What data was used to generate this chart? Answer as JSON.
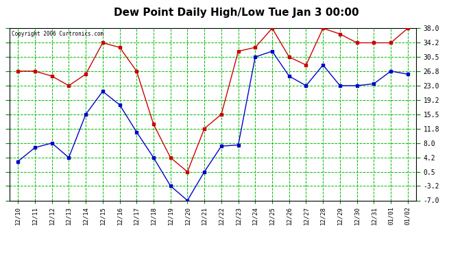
{
  "title": "Dew Point Daily High/Low Tue Jan 3 00:00",
  "copyright": "Copyright 2006 Curtronics.com",
  "labels": [
    "12/10",
    "12/11",
    "12/12",
    "12/13",
    "12/14",
    "12/15",
    "12/16",
    "12/17",
    "12/18",
    "12/19",
    "12/20",
    "12/21",
    "12/22",
    "12/23",
    "12/24",
    "12/25",
    "12/26",
    "12/27",
    "12/28",
    "12/29",
    "12/30",
    "12/31",
    "01/01",
    "01/02"
  ],
  "high": [
    26.8,
    26.8,
    25.5,
    23.0,
    26.0,
    34.2,
    33.0,
    26.8,
    12.9,
    4.2,
    0.5,
    11.8,
    15.5,
    32.0,
    33.0,
    38.0,
    30.5,
    28.4,
    38.0,
    36.5,
    34.2,
    34.2,
    34.2,
    38.0
  ],
  "low": [
    3.2,
    6.8,
    8.0,
    4.2,
    15.5,
    21.5,
    18.0,
    10.9,
    4.2,
    -3.2,
    -7.0,
    0.5,
    7.2,
    7.5,
    30.5,
    32.0,
    25.5,
    23.0,
    28.4,
    23.0,
    23.0,
    23.5,
    26.8,
    26.0
  ],
  "ylim": [
    -7.0,
    38.0
  ],
  "yticks": [
    -7.0,
    -3.2,
    0.5,
    4.2,
    8.0,
    11.8,
    15.5,
    19.2,
    23.0,
    26.8,
    30.5,
    34.2,
    38.0
  ],
  "high_color": "#cc0000",
  "low_color": "#0000cc",
  "bg_color": "#ffffff",
  "grid_color": "#00bb00",
  "title_fontsize": 11
}
